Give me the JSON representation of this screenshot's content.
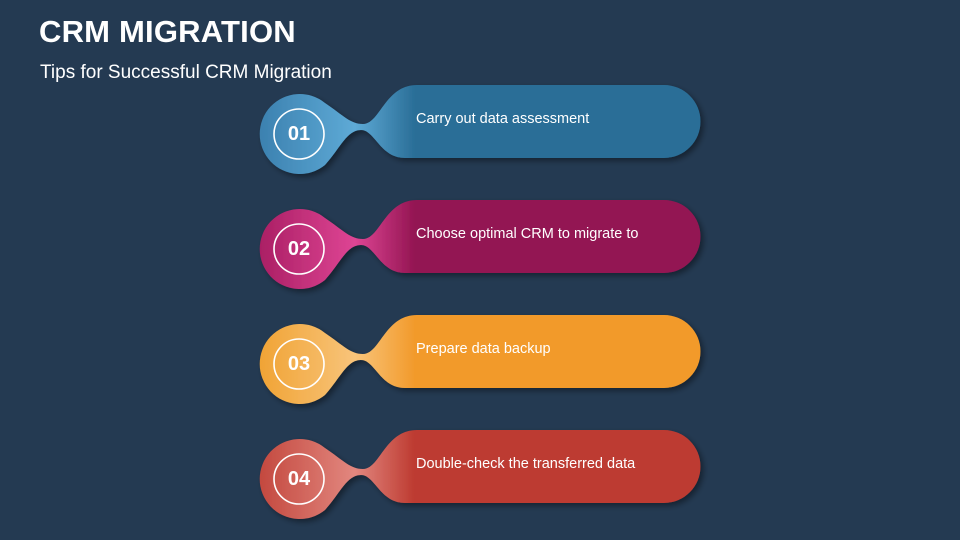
{
  "header": {
    "title": "CRM MIGRATION",
    "subtitle": "Tips for Successful CRM Migration"
  },
  "steps": [
    {
      "number": "01",
      "label": "Carry out data assessment",
      "color": "#2a6e97",
      "accent": "#5eaad6",
      "edge": "#3a7fae"
    },
    {
      "number": "02",
      "label": "Choose optimal CRM to migrate to",
      "color": "#931552",
      "accent": "#de4594",
      "edge": "#a81d62"
    },
    {
      "number": "03",
      "label": "Prepare data backup",
      "color": "#f29a2b",
      "accent": "#f8c47a",
      "edge": "#f0a232"
    },
    {
      "number": "04",
      "label": "Double-check the transferred data",
      "color": "#bd3a30",
      "accent": "#e2877f",
      "edge": "#c2463c"
    }
  ]
}
